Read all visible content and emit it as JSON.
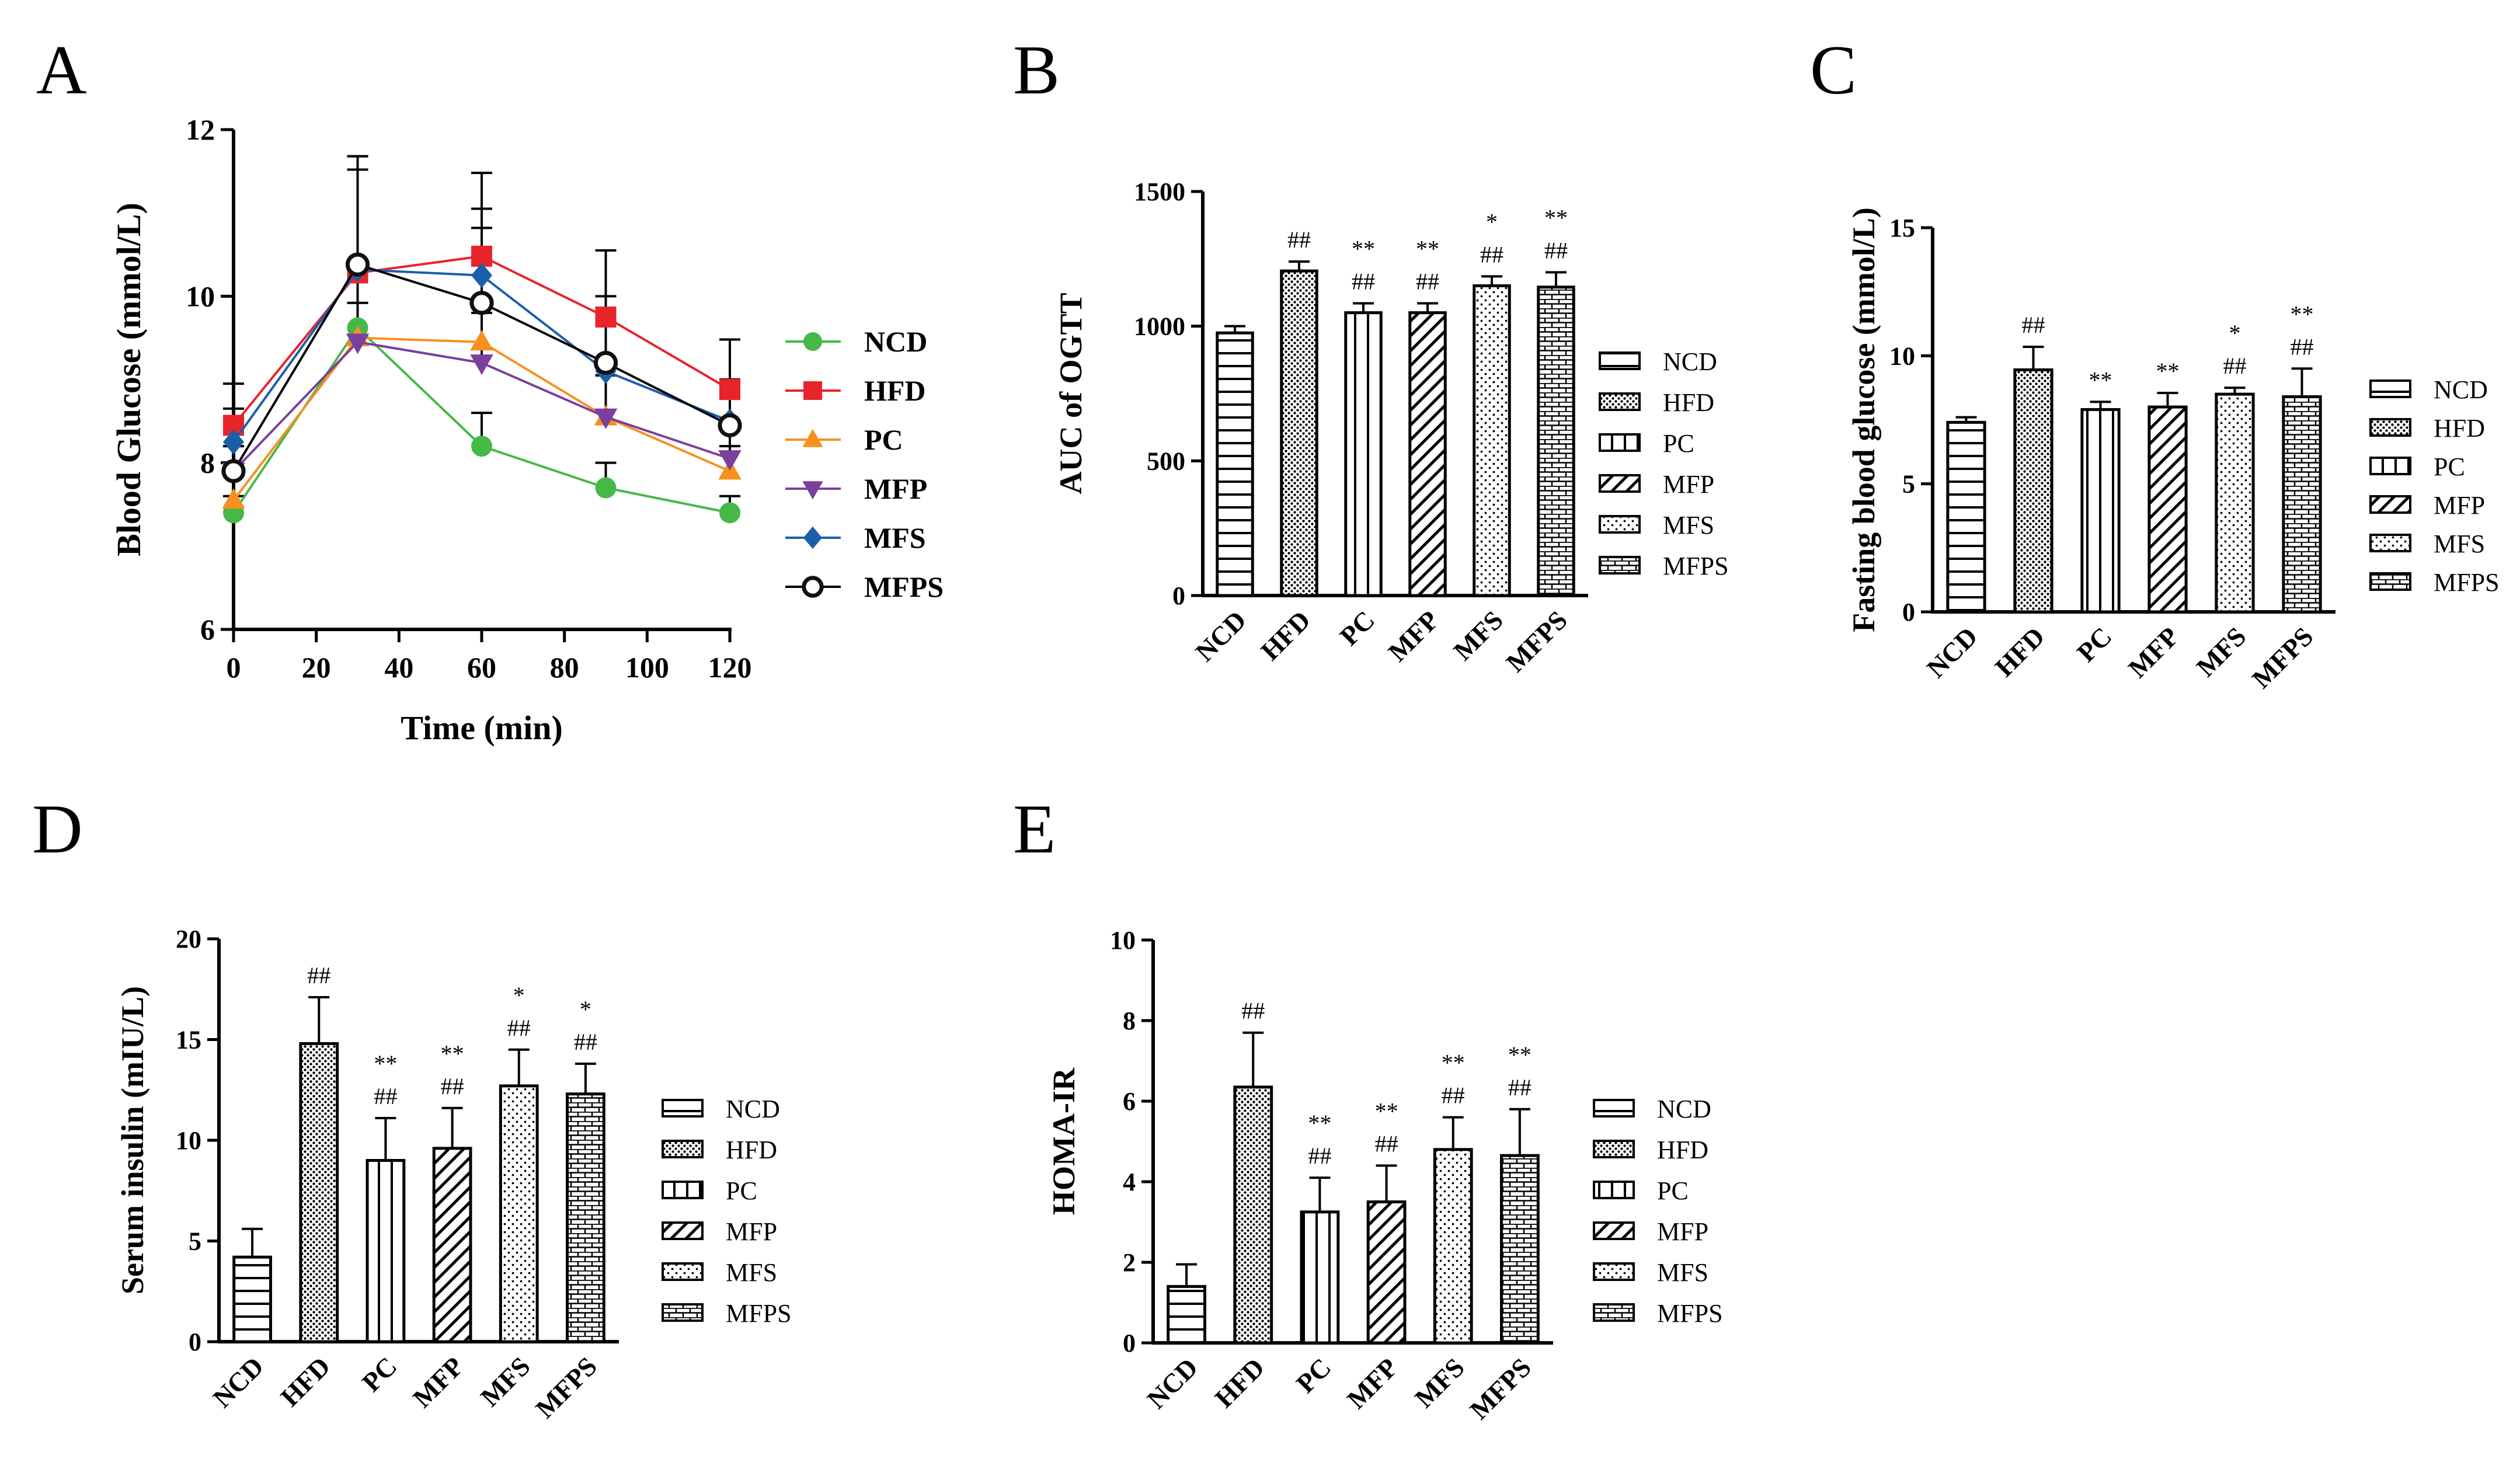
{
  "colors": {
    "NCD": "#46b848",
    "HFD": "#e8242b",
    "PC": "#f7901e",
    "MFP": "#7b3f9d",
    "MFS": "#1b5faa",
    "MFPS": "#111111"
  },
  "groups": [
    "NCD",
    "HFD",
    "PC",
    "MFP",
    "MFS",
    "MFPS"
  ],
  "patterns": [
    "hstripes",
    "dots-dense",
    "vstripes",
    "diag",
    "dots-sparse",
    "brick"
  ],
  "chart_data": [
    {
      "panel": "A",
      "type": "line",
      "xlabel": "Time (min)",
      "ylabel": "Blood Glucose (mmol/L)",
      "xlim": [
        0,
        120
      ],
      "ylim": [
        6,
        12
      ],
      "xticks": [
        0,
        20,
        40,
        60,
        80,
        100,
        120
      ],
      "yticks": [
        6,
        8,
        10,
        12
      ],
      "x": [
        0,
        30,
        60,
        90,
        120
      ],
      "legend_position": "right",
      "series": [
        {
          "name": "NCD",
          "marker": "circle",
          "values": [
            7.4,
            9.62,
            8.2,
            7.7,
            7.4
          ],
          "err": [
            0.2,
            0.3,
            0.4,
            0.3,
            0.2
          ]
        },
        {
          "name": "HFD",
          "marker": "square",
          "values": [
            8.45,
            10.28,
            10.48,
            9.75,
            8.88
          ],
          "err": [
            0.5,
            1.4,
            1.0,
            0.8,
            0.6
          ]
        },
        {
          "name": "PC",
          "marker": "triangle",
          "values": [
            7.55,
            9.5,
            9.45,
            8.55,
            7.9
          ],
          "err": [
            0.3,
            0.8,
            0.5,
            0.5,
            0.3
          ]
        },
        {
          "name": "MFP",
          "marker": "tri-down",
          "values": [
            7.9,
            9.45,
            9.2,
            8.55,
            8.05
          ],
          "err": [
            0.3,
            0.8,
            0.6,
            0.5,
            0.4
          ]
        },
        {
          "name": "MFS",
          "marker": "diamond",
          "values": [
            8.25,
            10.32,
            10.25,
            9.1,
            8.5
          ],
          "err": [
            0.4,
            1.2,
            0.8,
            0.7,
            0.5
          ]
        },
        {
          "name": "MFPS",
          "marker": "open-circle",
          "values": [
            7.9,
            10.38,
            9.92,
            9.2,
            8.45
          ],
          "err": [
            0.3,
            1.3,
            0.9,
            0.8,
            0.5
          ]
        }
      ]
    },
    {
      "panel": "B",
      "type": "bar",
      "ylabel": "AUC of OGTT",
      "categories": [
        "NCD",
        "HFD",
        "PC",
        "MFP",
        "MFS",
        "MFPS"
      ],
      "values": [
        975,
        1205,
        1050,
        1050,
        1150,
        1145
      ],
      "err": [
        25,
        35,
        35,
        35,
        35,
        55
      ],
      "ylim": [
        0,
        1500
      ],
      "yticks": [
        0,
        500,
        1000,
        1500
      ],
      "annotations": [
        [],
        [
          "##"
        ],
        [
          "##",
          "**"
        ],
        [
          "##",
          "**"
        ],
        [
          "##",
          "*"
        ],
        [
          "##",
          "**"
        ]
      ],
      "legend_position": "right"
    },
    {
      "panel": "C",
      "type": "bar",
      "ylabel": "Fasting blood glucose (mmol/L)",
      "categories": [
        "NCD",
        "HFD",
        "PC",
        "MFP",
        "MFS",
        "MFPS"
      ],
      "values": [
        7.4,
        9.45,
        7.9,
        8.0,
        8.5,
        8.4
      ],
      "err": [
        0.2,
        0.9,
        0.3,
        0.55,
        0.25,
        1.1
      ],
      "ylim": [
        0,
        15
      ],
      "yticks": [
        0,
        5,
        10,
        15
      ],
      "annotations": [
        [],
        [
          "##"
        ],
        [
          "**"
        ],
        [
          "**"
        ],
        [
          "##",
          "*"
        ],
        [
          "##",
          "**"
        ]
      ],
      "legend_position": "right"
    },
    {
      "panel": "D",
      "type": "bar",
      "ylabel": "Serum insulin (mIU/L)",
      "categories": [
        "NCD",
        "HFD",
        "PC",
        "MFP",
        "MFS",
        "MFPS"
      ],
      "values": [
        4.2,
        14.8,
        9.0,
        9.6,
        12.7,
        12.3
      ],
      "err": [
        1.4,
        2.3,
        2.1,
        2.0,
        1.8,
        1.5
      ],
      "ylim": [
        0,
        20
      ],
      "yticks": [
        0,
        5,
        10,
        15,
        20
      ],
      "annotations": [
        [],
        [
          "##"
        ],
        [
          "##",
          "**"
        ],
        [
          "##",
          "**"
        ],
        [
          "##",
          "*"
        ],
        [
          "##",
          "*"
        ]
      ],
      "legend_position": "right"
    },
    {
      "panel": "E",
      "type": "bar",
      "ylabel": "HOMA-IR",
      "categories": [
        "NCD",
        "HFD",
        "PC",
        "MFP",
        "MFS",
        "MFPS"
      ],
      "values": [
        1.4,
        6.35,
        3.25,
        3.5,
        4.8,
        4.65
      ],
      "err": [
        0.55,
        1.35,
        0.85,
        0.9,
        0.8,
        1.15
      ],
      "ylim": [
        0,
        10
      ],
      "yticks": [
        0,
        2,
        4,
        6,
        8,
        10
      ],
      "annotations": [
        [],
        [
          "##"
        ],
        [
          "##",
          "**"
        ],
        [
          "##",
          "**"
        ],
        [
          "##",
          "**"
        ],
        [
          "##",
          "**"
        ]
      ],
      "legend_position": "right"
    }
  ]
}
